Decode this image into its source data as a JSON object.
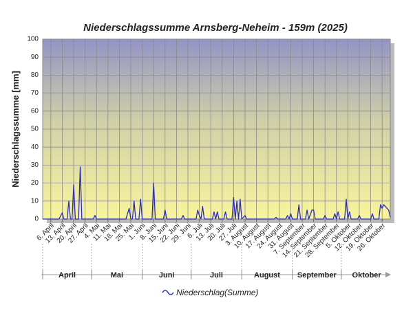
{
  "chart_data": {
    "type": "line",
    "title": "Niederschlagssumme Arnsberg-Neheim - 159m (2025)",
    "y_label": "Niederschlagssumme [mm]",
    "months": [
      "April",
      "Mai",
      "Juni",
      "Juli",
      "August",
      "September",
      "Oktober"
    ],
    "xlim": [
      "1. April",
      "31. Oktober"
    ],
    "xticks": [
      "6. April",
      "13. April",
      "20. April",
      "27. April",
      "4. Mai",
      "11. Mai",
      "18. Mai",
      "25. Mai",
      "1. Juni",
      "8. Juni",
      "15. Juni",
      "22. Juni",
      "29. Juni",
      "6. Juli",
      "13. Juli",
      "20. Juli",
      "27. Juli",
      "3. August",
      "10. August",
      "17. August",
      "24. August",
      "31. August",
      "7. September",
      "14. September",
      "21. September",
      "28. September",
      "5. Oktober",
      "12. Oktober",
      "19. Oktober",
      "26. Oktober"
    ],
    "ylim": [
      0,
      100
    ],
    "yticks": [
      0,
      10,
      20,
      30,
      40,
      50,
      60,
      70,
      80,
      90,
      100
    ],
    "grid": true,
    "x": [
      "1. April",
      "11. April",
      "13. April",
      "14. April",
      "16. April",
      "17. April",
      "18. April",
      "19. April",
      "20. April",
      "21. April",
      "23. April",
      "24. April",
      "25. April",
      "2. Mai",
      "3. Mai",
      "4. Mai",
      "22. Mai",
      "24. Mai",
      "25. Mai",
      "26. Mai",
      "27. Mai",
      "28. Mai",
      "30. Mai",
      "31. Mai",
      "1. Juni",
      "7. Juni",
      "8. Juni",
      "9. Juni",
      "14. Juni",
      "15. Juni",
      "16. Juni",
      "25. Juni",
      "26. Juni",
      "27. Juni",
      "4. Juli",
      "5. Juli",
      "6. Juli",
      "7. Juli",
      "8. Juli",
      "9. Juli",
      "14. Juli",
      "15. Juli",
      "16. Juli",
      "17. Juli",
      "18. Juli",
      "21. Juli",
      "22. Juli",
      "23. Juli",
      "26. Juli",
      "27. Juli",
      "28. Juli",
      "29. Juli",
      "30. Juli",
      "31. Juli",
      "1. August",
      "3. August",
      "4. August",
      "21. August",
      "22. August",
      "23. August",
      "28. August",
      "29. August",
      "30. August",
      "31. August",
      "1. September",
      "4. September",
      "5. September",
      "6. September",
      "9. September",
      "10. September",
      "11. September",
      "13. September",
      "14. September",
      "15. September",
      "20. September",
      "21. September",
      "22. September",
      "26. September",
      "27. September",
      "28. September",
      "29. September",
      "30. September",
      "3. Oktober",
      "4. Oktober",
      "5. Oktober",
      "6. Oktober",
      "7. Oktober",
      "11. Oktober",
      "12. Oktober",
      "13. Oktober",
      "19. Oktober",
      "20. Oktober",
      "21. Oktober",
      "24. Oktober",
      "25. Oktober",
      "26. Oktober",
      "27. Oktober",
      "29. Oktober",
      "30. Oktober",
      "31. Oktober"
    ],
    "series": [
      {
        "name": "Niederschlag(Summe)",
        "color": "#2a2ac8",
        "values": [
          0,
          0,
          3.5,
          0,
          0,
          10,
          0,
          0,
          19,
          0,
          0,
          29,
          0,
          0,
          2,
          0,
          0,
          6,
          0,
          0,
          10,
          0,
          0,
          11,
          0,
          0,
          20,
          0,
          0,
          5,
          0,
          0,
          2,
          0,
          0,
          5,
          2,
          0,
          7,
          0,
          0,
          4,
          0,
          4,
          0,
          0,
          4,
          0,
          0,
          12,
          0,
          10,
          0,
          11,
          0,
          2,
          0,
          0,
          1,
          0,
          0,
          2,
          0,
          3,
          0,
          0,
          8,
          0,
          0,
          5,
          0,
          5,
          5,
          0,
          0,
          2,
          0,
          0,
          3,
          0,
          4,
          0,
          0,
          11,
          0,
          4,
          0,
          0,
          2,
          0,
          0,
          3,
          0,
          0,
          8,
          6,
          8,
          6,
          5,
          1
        ]
      }
    ]
  }
}
